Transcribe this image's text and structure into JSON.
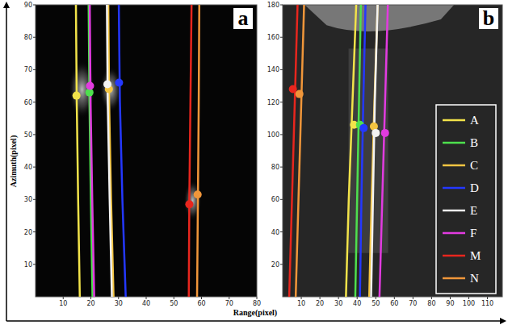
{
  "x_label": "Range(pixel)",
  "y_label": "Azimuth(pixel)",
  "chart_data": [
    {
      "type": "line",
      "panel": "a",
      "grid": false,
      "xlim": [
        0,
        80
      ],
      "ylim": [
        0,
        90
      ],
      "xticks": [
        10,
        20,
        30,
        40,
        50,
        60,
        70,
        80
      ],
      "yticks": [
        10,
        20,
        30,
        40,
        50,
        60,
        70,
        80,
        90
      ],
      "series": [
        {
          "name": "A",
          "color": "#f2e34a",
          "marker": "circle",
          "x": [
            16.0,
            15.4,
            14.9,
            14.6
          ],
          "values": [
            0,
            30,
            60,
            90
          ],
          "point_x": 14.8,
          "point_y": 62
        },
        {
          "name": "B",
          "color": "#4ee04e",
          "marker": "circle",
          "x": [
            20.6,
            20.0,
            19.5,
            19.2
          ],
          "values": [
            0,
            30,
            60,
            90
          ],
          "point_x": 19.5,
          "point_y": 63
        },
        {
          "name": "C",
          "color": "#f4c542",
          "marker": "circle",
          "x": [
            28.2,
            27.3,
            26.6,
            26.3
          ],
          "values": [
            0,
            30,
            60,
            90
          ],
          "point_x": 26.5,
          "point_y": 64
        },
        {
          "name": "D",
          "color": "#2438ff",
          "marker": "circle",
          "x": [
            32.6,
            31.4,
            30.5,
            30.1
          ],
          "values": [
            0,
            30,
            60,
            90
          ],
          "point_x": 30.2,
          "point_y": 66
        },
        {
          "name": "E",
          "color": "#f2f2f2",
          "marker": "circle",
          "x": [
            27.6,
            26.8,
            26.1,
            25.8
          ],
          "values": [
            0,
            30,
            60,
            90
          ],
          "point_x": 26.0,
          "point_y": 65.5
        },
        {
          "name": "F",
          "color": "#e23be0",
          "marker": "circle",
          "x": [
            21.2,
            20.5,
            19.9,
            19.6
          ],
          "values": [
            0,
            30,
            60,
            90
          ],
          "point_x": 19.7,
          "point_y": 65
        },
        {
          "name": "M",
          "color": "#e8261e",
          "marker": "circle",
          "x": [
            55.4,
            55.6,
            56.0,
            56.4
          ],
          "values": [
            0,
            30,
            60,
            90
          ],
          "point_x": 55.6,
          "point_y": 28.5
        },
        {
          "name": "N",
          "color": "#f0963a",
          "marker": "circle",
          "x": [
            58.4,
            58.7,
            59.0,
            59.2
          ],
          "values": [
            0,
            30,
            60,
            90
          ],
          "point_x": 58.6,
          "point_y": 31.5
        }
      ]
    },
    {
      "type": "line",
      "panel": "b",
      "grid": false,
      "legend": "right",
      "xlim": [
        0,
        118
      ],
      "ylim": [
        0,
        180
      ],
      "xticks": [
        10,
        20,
        30,
        40,
        50,
        60,
        70,
        80,
        90,
        100,
        110
      ],
      "yticks": [
        20,
        40,
        60,
        80,
        100,
        120,
        140,
        160,
        180
      ],
      "series": [
        {
          "name": "A",
          "color": "#f2e34a",
          "marker": "circle",
          "x": [
            34.0,
            35.5,
            37.5,
            39.5
          ],
          "values": [
            0,
            60,
            120,
            180
          ],
          "point_x": 38.3,
          "point_y": 106
        },
        {
          "name": "B",
          "color": "#4ee04e",
          "marker": "circle",
          "x": [
            39.0,
            40.0,
            41.0,
            42.0
          ],
          "values": [
            0,
            60,
            120,
            180
          ],
          "point_x": 41.5,
          "point_y": 106
        },
        {
          "name": "C",
          "color": "#f4c542",
          "marker": "circle",
          "x": [
            46.5,
            47.8,
            49.3,
            51.0
          ],
          "values": [
            0,
            60,
            120,
            180
          ],
          "point_x": 49.0,
          "point_y": 105
        },
        {
          "name": "D",
          "color": "#2438ff",
          "marker": "circle",
          "x": [
            41.5,
            42.3,
            43.3,
            44.5
          ],
          "values": [
            0,
            60,
            120,
            180
          ],
          "point_x": 43.5,
          "point_y": 104
        },
        {
          "name": "E",
          "color": "#f2f2f2",
          "marker": "circle",
          "x": [
            47.5,
            48.5,
            49.5,
            51.0
          ],
          "values": [
            0,
            60,
            120,
            180
          ],
          "point_x": 50.0,
          "point_y": 101
        },
        {
          "name": "F",
          "color": "#e23be0",
          "marker": "circle",
          "x": [
            52.0,
            53.5,
            55.0,
            56.5
          ],
          "values": [
            0,
            60,
            120,
            180
          ],
          "point_x": 55.0,
          "point_y": 101
        },
        {
          "name": "M",
          "color": "#e8261e",
          "marker": "circle",
          "x": [
            3.5,
            5.0,
            6.5,
            8.0
          ],
          "values": [
            0,
            60,
            120,
            180
          ],
          "point_x": 5.5,
          "point_y": 128
        },
        {
          "name": "N",
          "color": "#f0963a",
          "marker": "circle",
          "x": [
            7.0,
            8.5,
            10.0,
            11.5
          ],
          "values": [
            0,
            60,
            120,
            180
          ],
          "point_x": 9.0,
          "point_y": 125
        }
      ]
    }
  ]
}
